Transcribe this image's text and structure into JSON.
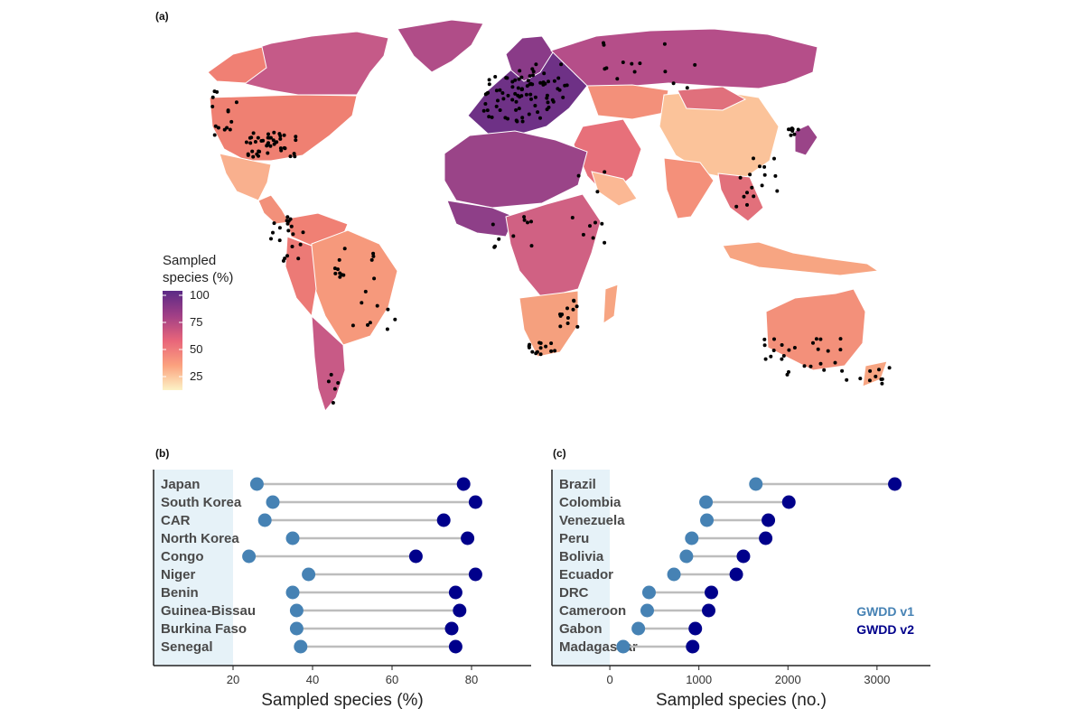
{
  "figure": {
    "label_a": "(a)",
    "label_b": "(b)",
    "label_c": "(c)"
  },
  "map": {
    "legend_title_line1": "Sampled",
    "legend_title_line2": "species (%)",
    "legend_ticks": [
      "100",
      "75",
      "50",
      "25"
    ]
  },
  "chart_data": [
    {
      "type": "map",
      "panel": "(a)",
      "legend_title": "Sampled species (%)",
      "legend_range": [
        0,
        100
      ],
      "legend_ticks": [
        25,
        50,
        75,
        100
      ],
      "colors": {
        "low": "#fcf3c6",
        "mid": "#e8657a",
        "high": "#5b2a86"
      }
    },
    {
      "type": "dumbbell",
      "panel": "(b)",
      "xlabel": "Sampled species (%)",
      "xlim": [
        0,
        95
      ],
      "xticks": [
        20,
        40,
        60,
        80
      ],
      "categories": [
        "Japan",
        "South Korea",
        "CAR",
        "North Korea",
        "Congo",
        "Niger",
        "Benin",
        "Guinea-Bissau",
        "Burkina Faso",
        "Senegal"
      ],
      "series": [
        {
          "name": "GWDD v1",
          "color": "#4682b4",
          "values": [
            26,
            30,
            28,
            35,
            24,
            39,
            35,
            36,
            36,
            37
          ]
        },
        {
          "name": "GWDD v2",
          "color": "#00008b",
          "values": [
            78,
            81,
            73,
            79,
            66,
            81,
            76,
            77,
            75,
            76
          ]
        }
      ],
      "grid": false
    },
    {
      "type": "dumbbell",
      "panel": "(c)",
      "xlabel": "Sampled species (no.)",
      "xlim": [
        -650,
        3600
      ],
      "xticks": [
        0,
        1000,
        2000,
        3000
      ],
      "categories": [
        "Brazil",
        "Colombia",
        "Venezuela",
        "Peru",
        "Bolivia",
        "Ecuador",
        "DRC",
        "Cameroon",
        "Gabon",
        "Madagascar"
      ],
      "series": [
        {
          "name": "GWDD v1",
          "color": "#4682b4",
          "values": [
            1640,
            1080,
            1090,
            920,
            860,
            720,
            440,
            420,
            320,
            150
          ]
        },
        {
          "name": "GWDD v2",
          "color": "#00008b",
          "values": [
            3200,
            2010,
            1780,
            1750,
            1500,
            1420,
            1140,
            1110,
            960,
            930
          ]
        }
      ],
      "legend": [
        "GWDD v1",
        "GWDD v2"
      ],
      "legend_position": "bottom-right",
      "grid": false
    }
  ]
}
